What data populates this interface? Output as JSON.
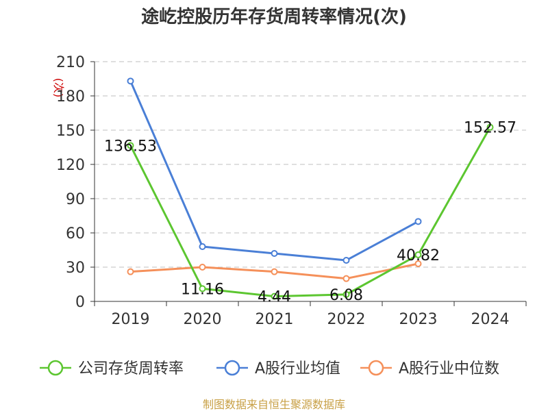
{
  "chart_data": {
    "type": "line",
    "title": "途屹控股历年存货周转率情况(次)",
    "ylabel": "(次)",
    "categories": [
      "2019",
      "2020",
      "2021",
      "2022",
      "2023",
      "2024"
    ],
    "y_ticks": [
      "0",
      "30",
      "60",
      "90",
      "120",
      "150",
      "180",
      "210"
    ],
    "ylim": [
      0,
      210
    ],
    "grid": true,
    "legend_position": "bottom",
    "series": [
      {
        "name": "公司存货周转率",
        "color": "#5cc630",
        "values": [
          136.53,
          11.16,
          4.44,
          6.08,
          40.82,
          152.57
        ],
        "labels": [
          "136.53",
          "11.16",
          "4.44",
          "6.08",
          "40.82",
          "152.57"
        ]
      },
      {
        "name": "A股行业均值",
        "color": "#4a7fd6",
        "values": [
          193,
          48,
          42,
          36,
          70,
          null
        ]
      },
      {
        "name": "A股行业中位数",
        "color": "#f5905a",
        "values": [
          26,
          30,
          26,
          20,
          33,
          null
        ]
      }
    ]
  },
  "source_note": "制图数据来自恒生聚源数据库"
}
